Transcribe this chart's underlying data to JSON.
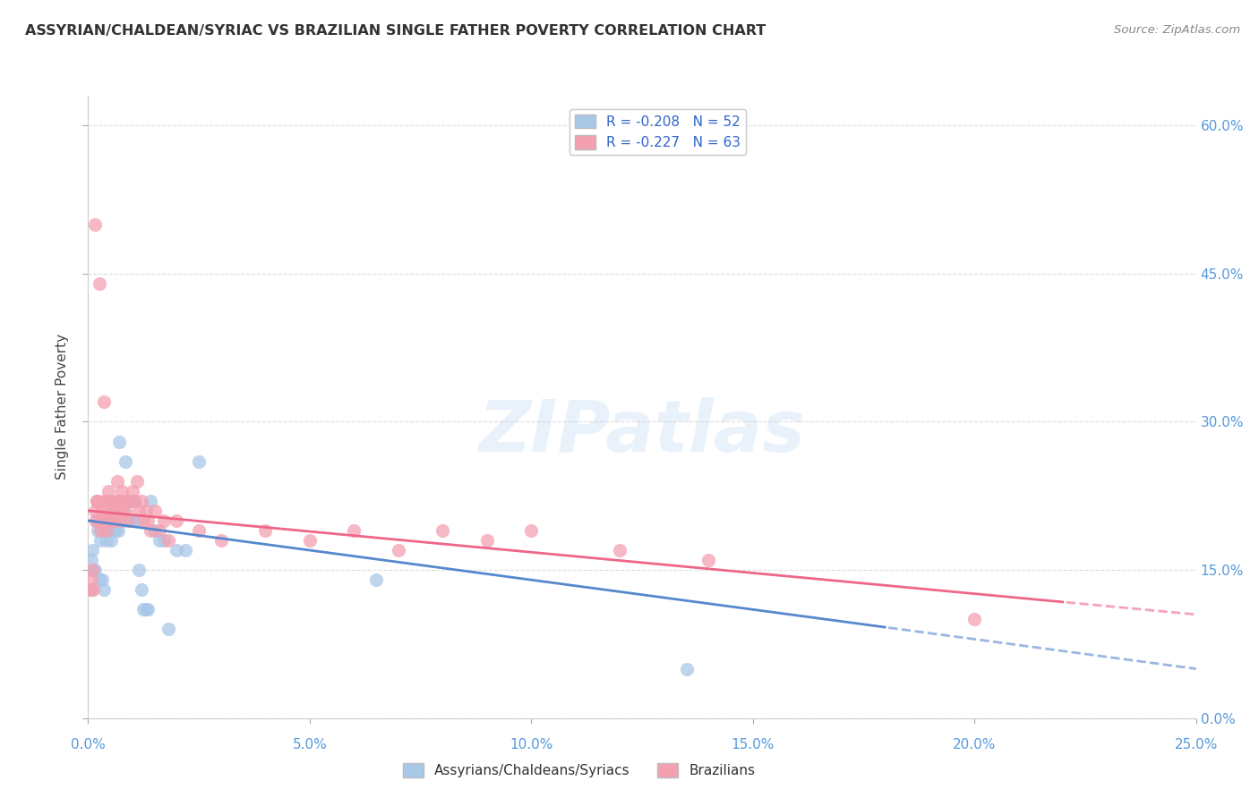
{
  "title": "ASSYRIAN/CHALDEAN/SYRIAC VS BRAZILIAN SINGLE FATHER POVERTY CORRELATION CHART",
  "source": "Source: ZipAtlas.com",
  "xlabel_vals": [
    0,
    5,
    10,
    15,
    20,
    25
  ],
  "ylabel": "Single Father Poverty",
  "ylabel_vals": [
    0,
    15,
    30,
    45,
    60
  ],
  "blue_R": -0.208,
  "blue_N": 52,
  "pink_R": -0.227,
  "pink_N": 63,
  "blue_color": "#a8c8e8",
  "pink_color": "#f4a0b0",
  "blue_line_color": "#5588cc",
  "pink_line_color": "#ee6688",
  "blue_label": "Assyrians/Chaldeans/Syriacs",
  "pink_label": "Brazilians",
  "watermark": "ZIPatlas",
  "background_color": "#ffffff",
  "grid_color": "#cccccc",
  "blue_scatter_x": [
    0.05,
    0.08,
    0.1,
    0.12,
    0.15,
    0.18,
    0.2,
    0.22,
    0.25,
    0.28,
    0.3,
    0.32,
    0.35,
    0.38,
    0.4,
    0.42,
    0.45,
    0.48,
    0.5,
    0.52,
    0.55,
    0.58,
    0.6,
    0.62,
    0.65,
    0.68,
    0.7,
    0.72,
    0.75,
    0.78,
    0.8,
    0.85,
    0.9,
    0.95,
    1.0,
    1.05,
    1.1,
    1.15,
    1.2,
    1.25,
    1.3,
    1.35,
    1.4,
    1.5,
    1.6,
    1.7,
    1.8,
    2.0,
    2.2,
    2.5,
    6.5,
    13.5
  ],
  "blue_scatter_y": [
    13,
    16,
    17,
    15,
    15,
    20,
    22,
    19,
    14,
    18,
    19,
    14,
    13,
    20,
    19,
    18,
    20,
    22,
    20,
    18,
    20,
    19,
    21,
    19,
    20,
    19,
    28,
    20,
    22,
    20,
    21,
    26,
    22,
    20,
    20,
    22,
    20,
    15,
    13,
    11,
    11,
    11,
    22,
    19,
    18,
    18,
    9,
    17,
    17,
    26,
    14,
    5
  ],
  "pink_scatter_x": [
    0.05,
    0.08,
    0.1,
    0.12,
    0.15,
    0.18,
    0.2,
    0.22,
    0.25,
    0.28,
    0.3,
    0.32,
    0.35,
    0.38,
    0.4,
    0.42,
    0.45,
    0.48,
    0.5,
    0.52,
    0.55,
    0.58,
    0.6,
    0.62,
    0.65,
    0.68,
    0.7,
    0.72,
    0.75,
    0.78,
    0.8,
    0.85,
    0.9,
    0.95,
    1.0,
    1.05,
    1.1,
    1.15,
    1.2,
    1.25,
    1.3,
    1.35,
    1.4,
    1.5,
    1.6,
    1.7,
    1.8,
    2.0,
    2.5,
    3.0,
    4.0,
    5.0,
    6.0,
    7.0,
    8.0,
    9.0,
    10.0,
    12.0,
    14.0,
    20.0,
    0.15,
    0.25,
    0.35
  ],
  "pink_scatter_y": [
    13,
    14,
    15,
    13,
    21,
    20,
    22,
    22,
    20,
    19,
    20,
    21,
    22,
    21,
    22,
    19,
    23,
    20,
    22,
    20,
    21,
    20,
    22,
    21,
    24,
    22,
    20,
    21,
    23,
    22,
    22,
    21,
    20,
    22,
    23,
    22,
    24,
    21,
    22,
    20,
    21,
    20,
    19,
    21,
    19,
    20,
    18,
    20,
    19,
    18,
    19,
    18,
    19,
    17,
    19,
    18,
    19,
    17,
    16,
    10,
    50,
    44,
    32
  ]
}
